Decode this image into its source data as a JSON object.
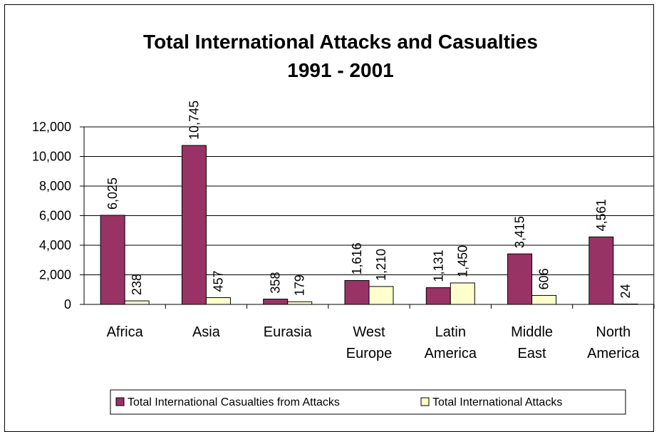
{
  "chart_data": {
    "type": "bar",
    "title": "Total International Attacks and Casualties",
    "subtitle": "1991 - 2001",
    "categories": [
      [
        "Africa"
      ],
      [
        "Asia"
      ],
      [
        "Eurasia"
      ],
      [
        "West",
        "Europe"
      ],
      [
        "Latin",
        "America"
      ],
      [
        "Middle",
        "East"
      ],
      [
        "North",
        "America"
      ]
    ],
    "series": [
      {
        "name": "Total International Casualties from Attacks",
        "color": "#993366",
        "values": [
          6025,
          10745,
          358,
          1616,
          1131,
          3415,
          4561
        ],
        "labels": [
          "6,025",
          "10,745",
          "358",
          "1,616",
          "1,131",
          "3,415",
          "4,561"
        ]
      },
      {
        "name": "Total International Attacks",
        "color": "#FFFFCC",
        "values": [
          238,
          457,
          179,
          1210,
          1450,
          606,
          24
        ],
        "labels": [
          "238",
          "457",
          "179",
          "1,210",
          "1,450",
          "606",
          "24"
        ]
      }
    ],
    "ylim": [
      0,
      12000
    ],
    "yticks": [
      "0",
      "2,000",
      "4,000",
      "6,000",
      "8,000",
      "10,000",
      "12,000"
    ],
    "grid": true,
    "legend": "bottom"
  }
}
